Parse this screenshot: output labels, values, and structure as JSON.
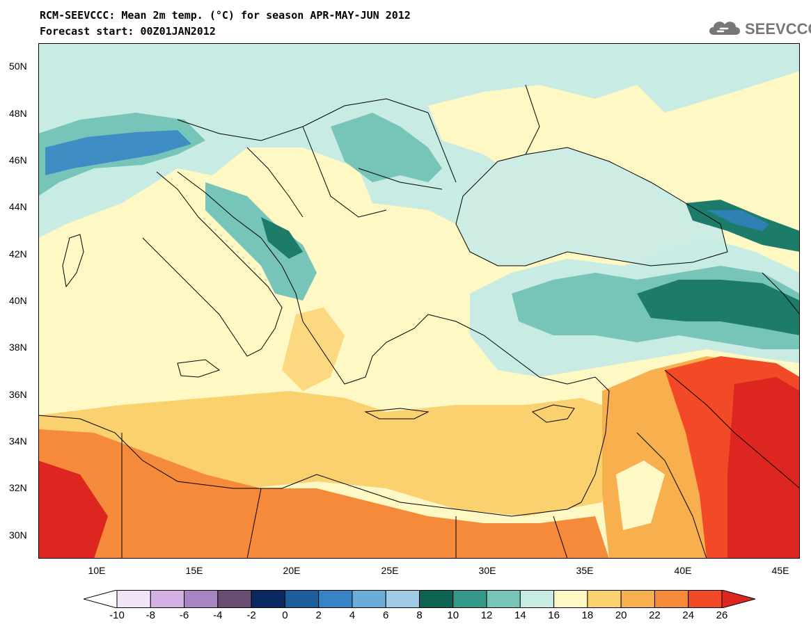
{
  "title": {
    "line1": "RCM-SEEVCCC: Mean 2m temp. (°C) for season APR-MAY-JUN 2012",
    "line2": "Forecast start: 00Z01JAN2012"
  },
  "logo": {
    "text": "SEEVCCC",
    "icon": "cloud-icon",
    "color": "#777777"
  },
  "map": {
    "variable": "Mean 2m temp. (°C)",
    "lat_ticks": [
      "50N",
      "48N",
      "46N",
      "44N",
      "42N",
      "40N",
      "38N",
      "36N",
      "34N",
      "32N",
      "30N"
    ],
    "lon_ticks": [
      "10E",
      "15E",
      "20E",
      "25E",
      "30E",
      "35E",
      "40E",
      "45E"
    ],
    "colors": {
      "sea_mid": "#fdf8c4",
      "land_warm": "#fbd06f",
      "hot": "#f36a36",
      "very_hot": "#de2620",
      "cool": "#77c4b8",
      "cold": "#1d7b6a",
      "black_sea": "#cdece4"
    }
  },
  "colorbar": {
    "labels": [
      "-10",
      "-8",
      "-6",
      "-4",
      "-2",
      "0",
      "2",
      "4",
      "6",
      "8",
      "10",
      "12",
      "14",
      "16",
      "18",
      "20",
      "22",
      "24",
      "26"
    ],
    "colors": [
      "#ffffff",
      "#f0e4f6",
      "#d5b1e3",
      "#a984c2",
      "#6a4d73",
      "#0b2a61",
      "#1c5d9b",
      "#3683c5",
      "#6aaed8",
      "#9fcbe6",
      "#0d6352",
      "#34998a",
      "#77c4b8",
      "#c8ebe4",
      "#fdf8c4",
      "#fbd06f",
      "#f8b04e",
      "#f58a3a",
      "#f24a26",
      "#de2620"
    ]
  }
}
